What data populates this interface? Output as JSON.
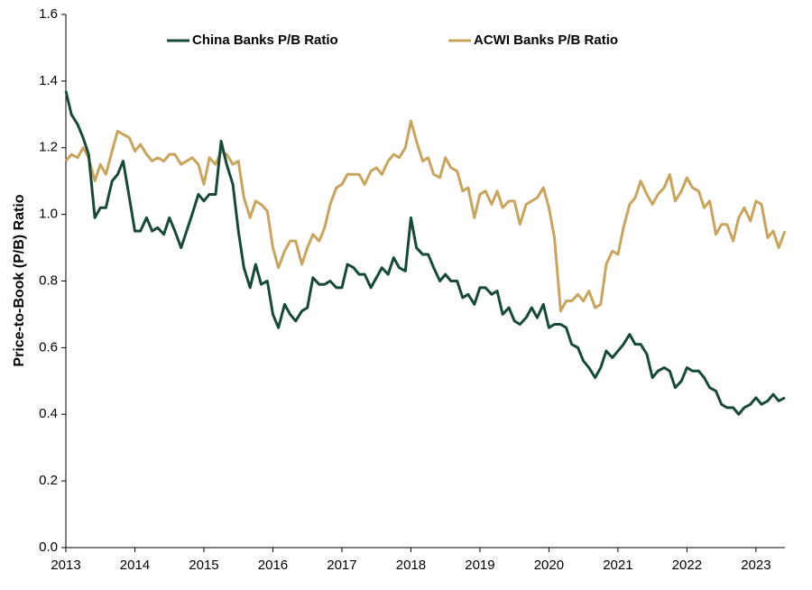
{
  "chart_data": {
    "type": "line",
    "y_label": "Price-to-Book (P/B) Ratio",
    "x": [
      2013.0,
      2013.08,
      2013.17,
      2013.25,
      2013.33,
      2013.42,
      2013.5,
      2013.58,
      2013.67,
      2013.75,
      2013.83,
      2013.92,
      2014.0,
      2014.08,
      2014.17,
      2014.25,
      2014.33,
      2014.42,
      2014.5,
      2014.58,
      2014.67,
      2014.75,
      2014.83,
      2014.92,
      2015.0,
      2015.08,
      2015.17,
      2015.25,
      2015.33,
      2015.42,
      2015.5,
      2015.58,
      2015.67,
      2015.75,
      2015.83,
      2015.92,
      2016.0,
      2016.08,
      2016.17,
      2016.25,
      2016.33,
      2016.42,
      2016.5,
      2016.58,
      2016.67,
      2016.75,
      2016.83,
      2016.92,
      2017.0,
      2017.08,
      2017.17,
      2017.25,
      2017.33,
      2017.42,
      2017.5,
      2017.58,
      2017.67,
      2017.75,
      2017.83,
      2017.92,
      2018.0,
      2018.08,
      2018.17,
      2018.25,
      2018.33,
      2018.42,
      2018.5,
      2018.58,
      2018.67,
      2018.75,
      2018.83,
      2018.92,
      2019.0,
      2019.08,
      2019.17,
      2019.25,
      2019.33,
      2019.42,
      2019.5,
      2019.58,
      2019.67,
      2019.75,
      2019.83,
      2019.92,
      2020.0,
      2020.08,
      2020.17,
      2020.25,
      2020.33,
      2020.42,
      2020.5,
      2020.58,
      2020.67,
      2020.75,
      2020.83,
      2020.92,
      2021.0,
      2021.08,
      2021.17,
      2021.25,
      2021.33,
      2021.42,
      2021.5,
      2021.58,
      2021.67,
      2021.75,
      2021.83,
      2021.92,
      2022.0,
      2022.08,
      2022.17,
      2022.25,
      2022.33,
      2022.42,
      2022.5,
      2022.58,
      2022.67,
      2022.75,
      2022.83,
      2022.92,
      2023.0,
      2023.08,
      2023.17,
      2023.25,
      2023.33,
      2023.42
    ],
    "series": [
      {
        "name": "China Banks P/B Ratio",
        "color": "#174a36",
        "values": [
          1.37,
          1.3,
          1.27,
          1.23,
          1.18,
          0.99,
          1.02,
          1.02,
          1.1,
          1.12,
          1.16,
          1.05,
          0.95,
          0.95,
          0.99,
          0.95,
          0.96,
          0.94,
          0.99,
          0.95,
          0.9,
          0.95,
          1.0,
          1.06,
          1.04,
          1.06,
          1.06,
          1.22,
          1.15,
          1.09,
          0.95,
          0.84,
          0.78,
          0.85,
          0.79,
          0.8,
          0.7,
          0.66,
          0.73,
          0.7,
          0.68,
          0.71,
          0.72,
          0.81,
          0.79,
          0.79,
          0.8,
          0.78,
          0.78,
          0.85,
          0.84,
          0.82,
          0.82,
          0.78,
          0.81,
          0.84,
          0.82,
          0.87,
          0.84,
          0.83,
          0.99,
          0.9,
          0.88,
          0.88,
          0.84,
          0.8,
          0.82,
          0.8,
          0.8,
          0.75,
          0.76,
          0.73,
          0.78,
          0.78,
          0.76,
          0.77,
          0.7,
          0.72,
          0.68,
          0.67,
          0.69,
          0.72,
          0.69,
          0.73,
          0.66,
          0.67,
          0.67,
          0.66,
          0.61,
          0.6,
          0.56,
          0.54,
          0.51,
          0.54,
          0.59,
          0.57,
          0.59,
          0.61,
          0.64,
          0.61,
          0.61,
          0.58,
          0.51,
          0.53,
          0.54,
          0.53,
          0.48,
          0.5,
          0.54,
          0.53,
          0.53,
          0.51,
          0.48,
          0.47,
          0.43,
          0.42,
          0.42,
          0.4,
          0.42,
          0.43,
          0.45,
          0.43,
          0.44,
          0.46,
          0.44,
          0.45
        ]
      },
      {
        "name": "ACWI Banks P/B Ratio",
        "color": "#c9a45c",
        "values": [
          1.16,
          1.18,
          1.17,
          1.2,
          1.17,
          1.1,
          1.15,
          1.12,
          1.19,
          1.25,
          1.24,
          1.23,
          1.19,
          1.21,
          1.18,
          1.16,
          1.17,
          1.16,
          1.18,
          1.18,
          1.15,
          1.16,
          1.17,
          1.15,
          1.09,
          1.17,
          1.15,
          1.19,
          1.18,
          1.15,
          1.16,
          1.05,
          0.99,
          1.04,
          1.03,
          1.01,
          0.9,
          0.84,
          0.89,
          0.92,
          0.92,
          0.85,
          0.9,
          0.94,
          0.92,
          0.96,
          1.03,
          1.08,
          1.09,
          1.12,
          1.12,
          1.12,
          1.09,
          1.13,
          1.14,
          1.12,
          1.16,
          1.18,
          1.17,
          1.2,
          1.28,
          1.22,
          1.16,
          1.17,
          1.12,
          1.11,
          1.17,
          1.14,
          1.13,
          1.07,
          1.08,
          0.99,
          1.06,
          1.07,
          1.03,
          1.07,
          1.02,
          1.04,
          1.04,
          0.97,
          1.03,
          1.04,
          1.05,
          1.08,
          1.02,
          0.93,
          0.71,
          0.74,
          0.74,
          0.76,
          0.74,
          0.77,
          0.72,
          0.73,
          0.85,
          0.89,
          0.88,
          0.96,
          1.03,
          1.05,
          1.1,
          1.06,
          1.03,
          1.06,
          1.08,
          1.12,
          1.04,
          1.07,
          1.11,
          1.08,
          1.07,
          1.02,
          1.04,
          0.94,
          0.97,
          0.97,
          0.92,
          0.99,
          1.02,
          0.98,
          1.04,
          1.03,
          0.93,
          0.95,
          0.9,
          0.95
        ]
      }
    ],
    "xlim": [
      2013,
      2023.42
    ],
    "xticks": [
      2013,
      2014,
      2015,
      2016,
      2017,
      2018,
      2019,
      2020,
      2021,
      2022,
      2023
    ],
    "ylim": [
      0,
      1.6
    ],
    "yticks": [
      {
        "value": 0,
        "label": "0.0"
      },
      0.2,
      0.4,
      0.6,
      0.8,
      {
        "value": 1,
        "label": "1.0"
      },
      1.2,
      1.4,
      1.6
    ],
    "grid": false,
    "legend": "top"
  }
}
